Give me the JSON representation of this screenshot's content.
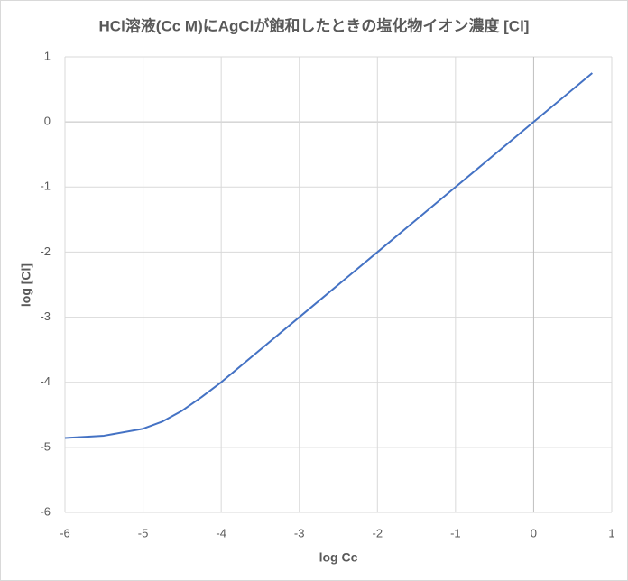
{
  "chart_data": {
    "type": "line",
    "title": "HCl溶液(Cc M)にAgClが飽和したときの塩化物イオン濃度 [Cl]",
    "x_label": "log Cc",
    "y_label": "log [Cl]",
    "series": [
      {
        "name": "log [Cl]",
        "color": "#4472c4",
        "x": [
          -6,
          -5.5,
          -5,
          -4.75,
          -4.5,
          -4.25,
          -4,
          -3,
          -2,
          -1,
          0,
          0.75
        ],
        "values": [
          -4.856,
          -4.821,
          -4.714,
          -4.602,
          -4.437,
          -4.227,
          -3.999,
          -3,
          -2,
          -1,
          0,
          0.75
        ]
      }
    ],
    "xlim": [
      -6,
      1
    ],
    "xticks": [
      -6,
      -5,
      -4,
      -3,
      -2,
      -1,
      0,
      1
    ],
    "ylim": [
      -6,
      1
    ],
    "yticks": [
      -6,
      -5,
      -4,
      -3,
      -2,
      -1,
      0,
      1
    ],
    "grid": true
  }
}
